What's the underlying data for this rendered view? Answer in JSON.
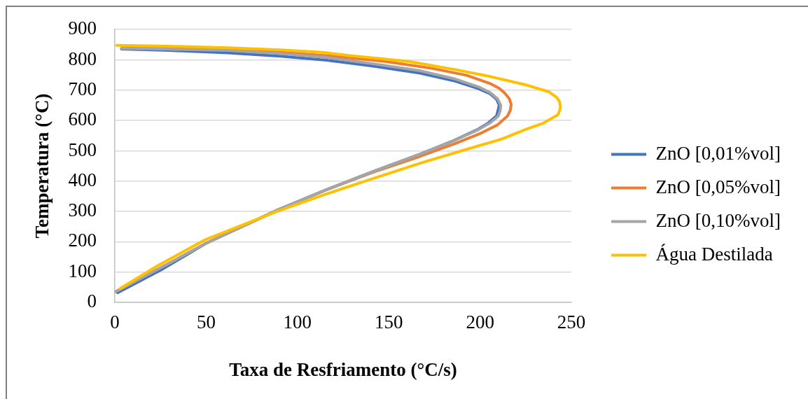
{
  "chart_data": {
    "type": "line",
    "xlabel": "Taxa de Resfriamento (°C/s)",
    "ylabel": "Temperatura (°C)",
    "xlim": [
      0,
      250
    ],
    "xticks": [
      0,
      50,
      100,
      150,
      200,
      250
    ],
    "ylim": [
      0,
      900
    ],
    "yticks": [
      0,
      100,
      200,
      300,
      400,
      500,
      600,
      700,
      800,
      900
    ],
    "grid": "y",
    "legend": "right",
    "series": [
      {
        "name": "ZnO [0,01%vol]",
        "color": "#4472c4",
        "x": [
          3.6,
          30,
          62,
          90.5,
          116,
          141.6,
          167.2,
          186.3,
          199.1,
          205.5,
          209,
          210.5,
          209,
          204.5,
          198.5,
          186,
          167.2,
          141.6,
          116,
          88,
          50,
          25.5,
          1.5
        ],
        "values": [
          836,
          831,
          823,
          812,
          799,
          779,
          756,
          730,
          705,
          688,
          670,
          650,
          615,
          592,
          570,
          535,
          489,
          432,
          372,
          302,
          195,
          108,
          32
        ]
      },
      {
        "name": "ZnO [0,05%vol]",
        "color": "#ed7d31",
        "x": [
          4,
          30,
          62,
          90.5,
          116,
          148,
          173.6,
          192.7,
          205.5,
          210.5,
          213.2,
          216,
          217,
          216.5,
          215,
          209.4,
          200.4,
          186.3,
          167.2,
          141.6,
          116,
          88,
          50,
          24,
          0.4
        ],
        "values": [
          844,
          840,
          835,
          825,
          814,
          795,
          772,
          749,
          722,
          706,
          692,
          672,
          653,
          633,
          615,
          585,
          558,
          524,
          482,
          430,
          372,
          301,
          195,
          111,
          35
        ]
      },
      {
        "name": "ZnO [0,10%vol]",
        "color": "#a5a5a5",
        "x": [
          3.6,
          30,
          62,
          90.5,
          116,
          141.6,
          167.2,
          186.3,
          199.1,
          205.5,
          209.5,
          211.3,
          211,
          210,
          205.5,
          199.1,
          186.3,
          167.2,
          141.6,
          116,
          88,
          50,
          24,
          0.4
        ],
        "values": [
          838,
          835,
          831,
          821,
          808,
          787,
          764,
          737,
          711,
          692,
          672,
          650,
          632,
          615,
          592,
          570,
          535,
          489,
          432,
          372,
          302,
          195,
          111,
          35
        ]
      },
      {
        "name": "Água Destilada",
        "color": "#ffc000",
        "x": [
          1,
          30,
          62,
          90.5,
          113.5,
          128.8,
          160.8,
          186.3,
          205.5,
          224.7,
          237.5,
          241.9,
          243.5,
          244,
          243.5,
          242.6,
          234.9,
          224.7,
          211.9,
          192.7,
          167.2,
          141.6,
          116,
          87.9,
          49.6,
          24,
          3
        ],
        "values": [
          848,
          845,
          840,
          833,
          825,
          814,
          795,
          768,
          745,
          718,
          695,
          676,
          662,
          646,
          632,
          619,
          592,
          570,
          539,
          505,
          459,
          409,
          358,
          298,
          207,
          123,
          46
        ]
      }
    ]
  }
}
